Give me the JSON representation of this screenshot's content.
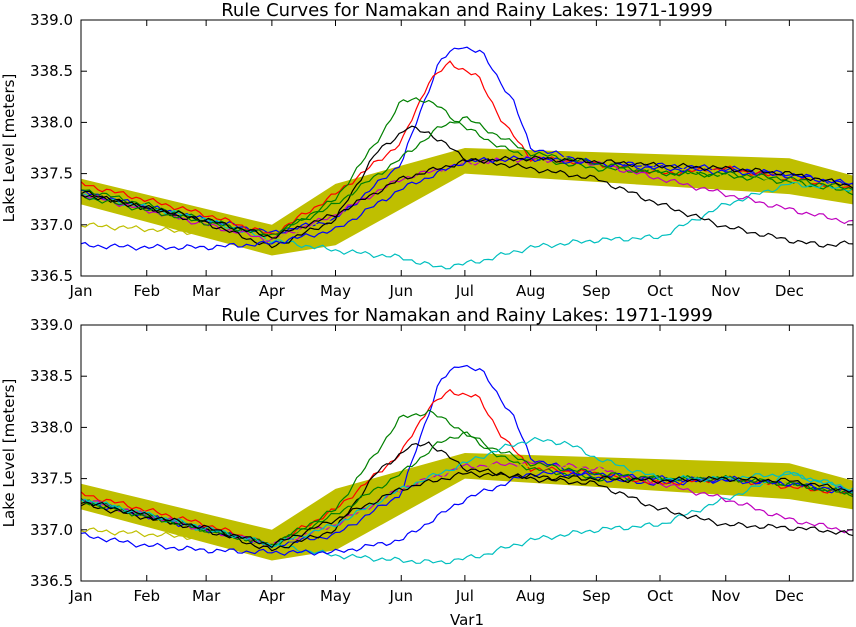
{
  "chart_data": [
    {
      "type": "line",
      "title": "Rule Curves for Namakan and Rainy Lakes: 1971-1999",
      "ylabel": "Lake Level [meters]",
      "xlabel": "",
      "x_unit": "day_of_year",
      "xlim": [
        1,
        365
      ],
      "ylim": [
        336.5,
        339.0
      ],
      "yticks": [
        336.5,
        337.0,
        337.5,
        338.0,
        338.5,
        339.0
      ],
      "ytick_labels": [
        "336.5",
        "337.0",
        "337.5",
        "338.0",
        "338.5",
        "339.0"
      ],
      "xtick_days": [
        1,
        32,
        60,
        91,
        121,
        152,
        182,
        213,
        244,
        274,
        305,
        335
      ],
      "xtick_labels": [
        "Jan",
        "Feb",
        "Mar",
        "Apr",
        "May",
        "Jun",
        "Jul",
        "Aug",
        "Sep",
        "Oct",
        "Nov",
        "Dec"
      ],
      "band": {
        "color": "#bfbf00",
        "x": [
          1,
          91,
          121,
          182,
          335,
          365
        ],
        "upper": [
          337.45,
          337.0,
          337.4,
          337.75,
          337.65,
          337.48
        ],
        "lower": [
          337.2,
          336.7,
          336.8,
          337.5,
          337.3,
          337.2
        ]
      },
      "series": [
        {
          "color": "#0000ff",
          "x": [
            1,
            60,
            91,
            121,
            152,
            170,
            180,
            190,
            205,
            213,
            244,
            274,
            305,
            335,
            365
          ],
          "values": [
            337.32,
            337.05,
            336.92,
            337.05,
            337.6,
            338.6,
            338.75,
            338.68,
            338.2,
            337.75,
            337.6,
            337.58,
            337.55,
            337.5,
            337.38
          ]
        },
        {
          "color": "#ff0000",
          "x": [
            1,
            60,
            91,
            121,
            152,
            165,
            175,
            188,
            200,
            213,
            244,
            274,
            305,
            335,
            365
          ],
          "values": [
            337.4,
            337.1,
            336.9,
            337.3,
            337.8,
            338.4,
            338.58,
            338.45,
            338.0,
            337.65,
            337.6,
            337.5,
            337.55,
            337.45,
            337.35
          ]
        },
        {
          "color": "#008000",
          "x": [
            1,
            60,
            91,
            121,
            140,
            152,
            160,
            170,
            182,
            200,
            213,
            244,
            274,
            305,
            335,
            365
          ],
          "values": [
            337.35,
            337.05,
            336.88,
            337.25,
            337.8,
            338.2,
            338.24,
            338.15,
            337.95,
            337.75,
            337.65,
            337.55,
            337.52,
            337.48,
            337.42,
            337.32
          ]
        },
        {
          "color": "#00bfbf",
          "x": [
            1,
            60,
            91,
            121,
            152,
            170,
            182,
            190,
            213,
            244,
            274,
            305,
            335,
            365
          ],
          "values": [
            337.3,
            337.05,
            336.85,
            336.75,
            336.68,
            336.58,
            336.62,
            336.65,
            336.78,
            336.85,
            336.88,
            337.2,
            337.4,
            337.35
          ]
        },
        {
          "color": "#bf00bf",
          "x": [
            1,
            60,
            91,
            121,
            152,
            182,
            213,
            244,
            274,
            305,
            335,
            365
          ],
          "values": [
            337.3,
            337.0,
            336.85,
            337.1,
            337.45,
            337.6,
            337.65,
            337.6,
            337.45,
            337.3,
            337.15,
            337.02
          ]
        },
        {
          "color": "#bfbf00",
          "x": [
            1,
            60,
            91,
            121,
            152,
            182,
            213,
            244,
            274,
            305,
            335,
            365
          ],
          "values": [
            337.0,
            336.92,
            336.85,
            337.05,
            337.4,
            337.6,
            337.65,
            337.62,
            337.55,
            337.5,
            337.45,
            337.38
          ]
        },
        {
          "color": "#000000",
          "x": [
            1,
            60,
            91,
            121,
            140,
            155,
            165,
            182,
            213,
            244,
            274,
            305,
            335,
            350,
            365
          ],
          "values": [
            337.32,
            337.02,
            336.78,
            337.05,
            337.7,
            337.95,
            337.9,
            337.65,
            337.55,
            337.45,
            337.2,
            336.98,
            336.85,
            336.8,
            336.82
          ]
        },
        {
          "color": "#0000ff",
          "x": [
            1,
            30,
            60,
            91,
            121,
            152,
            182,
            213,
            244,
            274,
            305,
            335,
            365
          ],
          "values": [
            336.8,
            336.78,
            336.78,
            336.82,
            336.95,
            337.35,
            337.62,
            337.65,
            337.6,
            337.55,
            337.52,
            337.48,
            337.4
          ]
        },
        {
          "color": "#008000",
          "x": [
            1,
            60,
            91,
            121,
            152,
            170,
            182,
            195,
            213,
            244,
            274,
            305,
            335,
            365
          ],
          "values": [
            337.28,
            337.02,
            336.9,
            337.2,
            337.65,
            337.95,
            338.05,
            337.9,
            337.7,
            337.6,
            337.5,
            337.5,
            337.45,
            337.35
          ]
        },
        {
          "color": "#000000",
          "x": [
            1,
            60,
            91,
            121,
            152,
            182,
            213,
            244,
            274,
            305,
            335,
            365
          ],
          "values": [
            337.3,
            337.05,
            336.88,
            337.1,
            337.45,
            337.62,
            337.65,
            337.62,
            337.58,
            337.55,
            337.5,
            337.38
          ]
        }
      ]
    },
    {
      "type": "line",
      "title": "Rule Curves for Namakan and Rainy Lakes: 1971-1999",
      "ylabel": "Lake Level [meters]",
      "xlabel": "Var1",
      "x_unit": "day_of_year",
      "xlim": [
        1,
        365
      ],
      "ylim": [
        336.5,
        339.0
      ],
      "yticks": [
        336.5,
        337.0,
        337.5,
        338.0,
        338.5,
        339.0
      ],
      "ytick_labels": [
        "336.5",
        "337.0",
        "337.5",
        "338.0",
        "338.5",
        "339.0"
      ],
      "xtick_days": [
        1,
        32,
        60,
        91,
        121,
        152,
        182,
        213,
        244,
        274,
        305,
        335
      ],
      "xtick_labels": [
        "Jan",
        "Feb",
        "Mar",
        "Apr",
        "May",
        "Jun",
        "Jul",
        "Aug",
        "Sep",
        "Oct",
        "Nov",
        "Dec"
      ],
      "band": {
        "color": "#bfbf00",
        "x": [
          1,
          91,
          121,
          182,
          335,
          365
        ],
        "upper": [
          337.45,
          337.0,
          337.4,
          337.75,
          337.65,
          337.48
        ],
        "lower": [
          337.2,
          336.7,
          336.8,
          337.5,
          337.3,
          337.2
        ]
      },
      "series": [
        {
          "color": "#0000ff",
          "x": [
            1,
            60,
            91,
            121,
            152,
            170,
            180,
            190,
            205,
            213,
            244,
            274,
            305,
            335,
            365
          ],
          "values": [
            337.28,
            337.0,
            336.85,
            336.95,
            337.35,
            338.45,
            338.62,
            338.55,
            338.1,
            337.7,
            337.5,
            337.45,
            337.5,
            337.45,
            337.35
          ]
        },
        {
          "color": "#ff0000",
          "x": [
            1,
            60,
            91,
            121,
            152,
            165,
            175,
            188,
            200,
            213,
            244,
            274,
            305,
            335,
            365
          ],
          "values": [
            337.35,
            337.05,
            336.85,
            337.2,
            337.75,
            338.2,
            338.35,
            338.3,
            337.9,
            337.6,
            337.55,
            337.45,
            337.5,
            337.42,
            337.35
          ]
        },
        {
          "color": "#008000",
          "x": [
            1,
            60,
            91,
            121,
            140,
            152,
            165,
            175,
            188,
            200,
            213,
            244,
            274,
            305,
            335,
            365
          ],
          "values": [
            337.3,
            337.0,
            336.85,
            337.2,
            337.75,
            338.1,
            338.15,
            338.05,
            337.85,
            337.7,
            337.6,
            337.5,
            337.5,
            337.5,
            337.45,
            337.35
          ]
        },
        {
          "color": "#00bfbf",
          "x": [
            1,
            60,
            91,
            121,
            152,
            170,
            182,
            190,
            213,
            244,
            274,
            305,
            335,
            365
          ],
          "values": [
            337.3,
            337.0,
            336.85,
            336.75,
            336.7,
            336.68,
            336.72,
            336.75,
            336.9,
            337.0,
            337.05,
            337.3,
            337.55,
            337.4
          ]
        },
        {
          "color": "#bf00bf",
          "x": [
            1,
            60,
            91,
            121,
            152,
            182,
            213,
            244,
            274,
            305,
            335,
            365
          ],
          "values": [
            337.3,
            337.0,
            336.85,
            337.05,
            337.4,
            337.62,
            337.65,
            337.6,
            337.45,
            337.3,
            337.1,
            336.98
          ]
        },
        {
          "color": "#bfbf00",
          "x": [
            1,
            60,
            91,
            121,
            152,
            182,
            213,
            244,
            274,
            305,
            335,
            365
          ],
          "values": [
            337.0,
            336.92,
            336.85,
            337.05,
            337.4,
            337.6,
            337.62,
            337.6,
            337.55,
            337.5,
            337.45,
            337.38
          ]
        },
        {
          "color": "#000000",
          "x": [
            1,
            60,
            91,
            121,
            140,
            155,
            165,
            182,
            213,
            244,
            274,
            305,
            335,
            350,
            365
          ],
          "values": [
            337.25,
            337.0,
            336.8,
            337.0,
            337.55,
            337.8,
            337.85,
            337.6,
            337.5,
            337.45,
            337.2,
            337.05,
            337.02,
            337.0,
            336.95
          ]
        },
        {
          "color": "#0000ff",
          "x": [
            1,
            30,
            60,
            91,
            121,
            152,
            182,
            213,
            244,
            274,
            305,
            335,
            365
          ],
          "values": [
            336.95,
            336.85,
            336.8,
            336.78,
            336.78,
            336.9,
            337.3,
            337.55,
            337.55,
            337.5,
            337.48,
            337.45,
            337.38
          ]
        },
        {
          "color": "#008000",
          "x": [
            1,
            60,
            91,
            121,
            152,
            170,
            182,
            195,
            213,
            244,
            274,
            305,
            335,
            365
          ],
          "values": [
            337.28,
            337.0,
            336.85,
            337.15,
            337.55,
            337.85,
            337.95,
            337.8,
            337.65,
            337.55,
            337.5,
            337.5,
            337.45,
            337.35
          ]
        },
        {
          "color": "#00bfbf",
          "x": [
            1,
            60,
            91,
            121,
            152,
            182,
            200,
            213,
            230,
            244,
            274,
            305,
            335,
            365
          ],
          "values": [
            337.3,
            337.02,
            336.85,
            337.05,
            337.4,
            337.65,
            337.8,
            337.88,
            337.85,
            337.7,
            337.5,
            337.5,
            337.55,
            337.38
          ]
        },
        {
          "color": "#000000",
          "x": [
            1,
            60,
            91,
            121,
            152,
            182,
            213,
            244,
            274,
            305,
            335,
            365
          ],
          "values": [
            337.28,
            337.02,
            336.85,
            337.1,
            337.4,
            337.55,
            337.52,
            337.5,
            337.48,
            337.5,
            337.48,
            337.38
          ]
        }
      ]
    }
  ]
}
